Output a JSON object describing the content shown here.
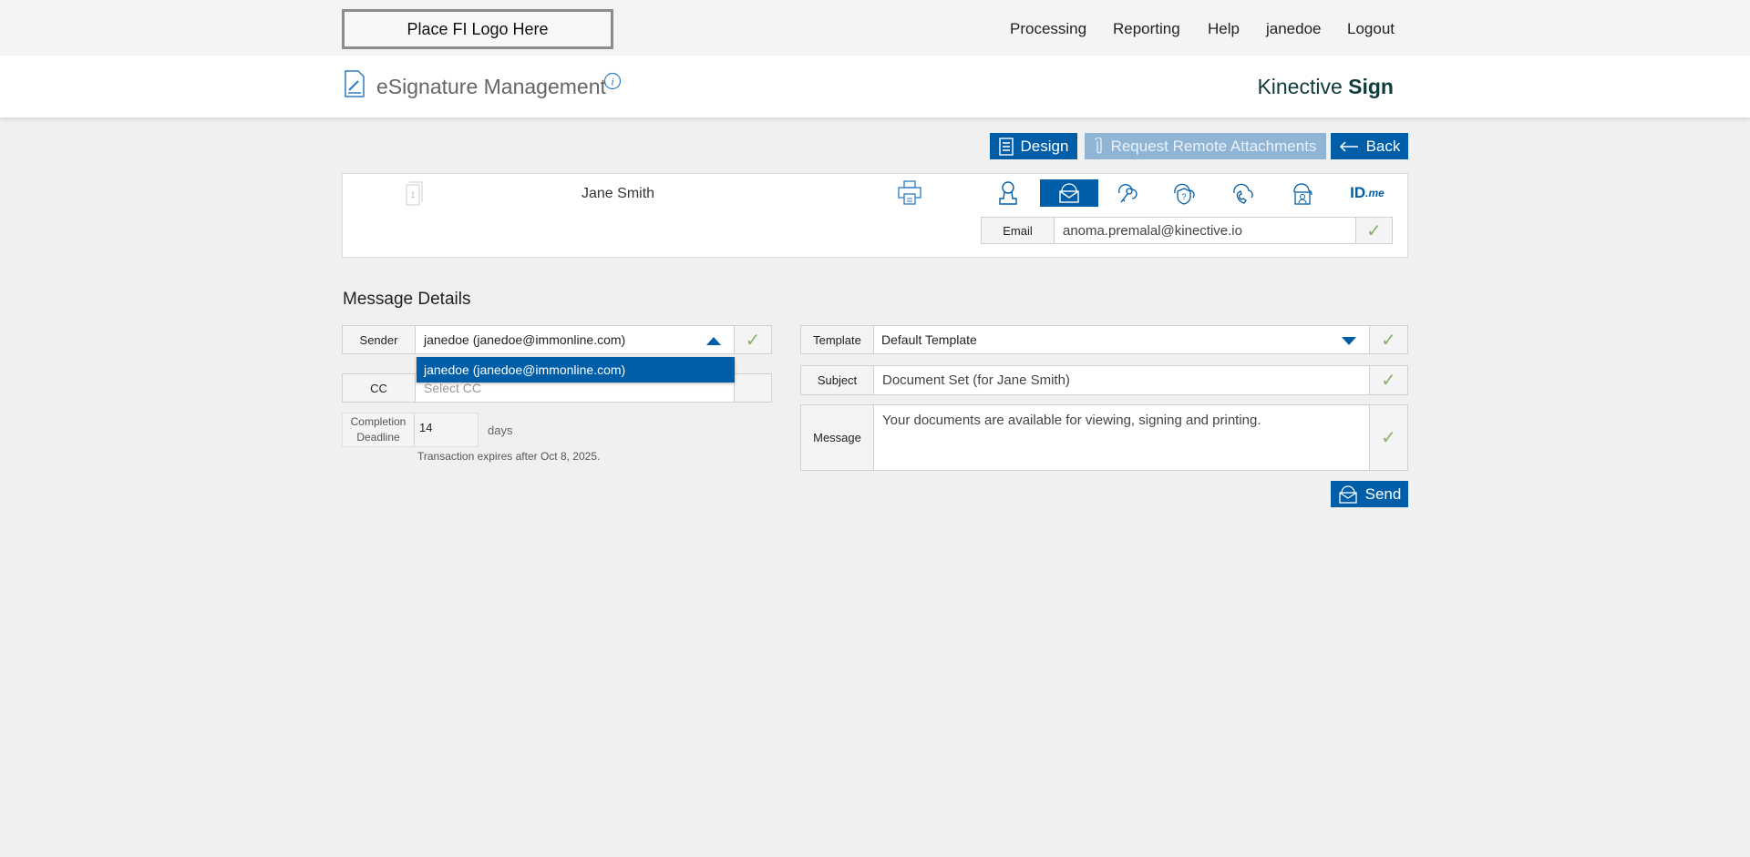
{
  "topbar": {
    "logo": "Place FI Logo Here",
    "nav": [
      "Processing",
      "Reporting",
      "Help",
      "janedoe",
      "Logout"
    ]
  },
  "header": {
    "title": "eSignature Management",
    "brand_light": "Kinective",
    "brand_bold": "Sign"
  },
  "toolbar": {
    "design": "Design",
    "request": "Request Remote Attachments",
    "back": "Back"
  },
  "signer": {
    "name": "Jane Smith",
    "doc_count": "1",
    "auth_methods": [
      "person-icon",
      "email-icon",
      "key-icon",
      "shield-question-icon",
      "phone-icon",
      "id-card-icon",
      "idme-icon"
    ],
    "active_method": "email-icon",
    "idme": "ID",
    "idme_suffix": ".me",
    "email_label": "Email",
    "email": "anoma.premalal@kinective.io"
  },
  "message_details": {
    "title": "Message Details",
    "sender_label": "Sender",
    "sender_value": "janedoe (janedoe@immonline.com)",
    "sender_options": [
      "janedoe (janedoe@immonline.com)"
    ],
    "cc_label": "CC",
    "cc_placeholder": "Select CC",
    "deadline_label_1": "Completion",
    "deadline_label_2": "Deadline",
    "deadline_value": "14",
    "deadline_unit": "days",
    "expiry_note": "Transaction expires after Oct 8, 2025.",
    "template_label": "Template",
    "template_value": "Default Template",
    "subject_label": "Subject",
    "subject_value": "Document Set (for Jane Smith)",
    "message_label": "Message",
    "message_value": "Your documents are available for viewing, signing and printing.",
    "send": "Send",
    "check": "✓"
  },
  "colors": {
    "accent": "#005ea8",
    "disabled": "#8fb4d4",
    "check": "#8ab06a"
  }
}
